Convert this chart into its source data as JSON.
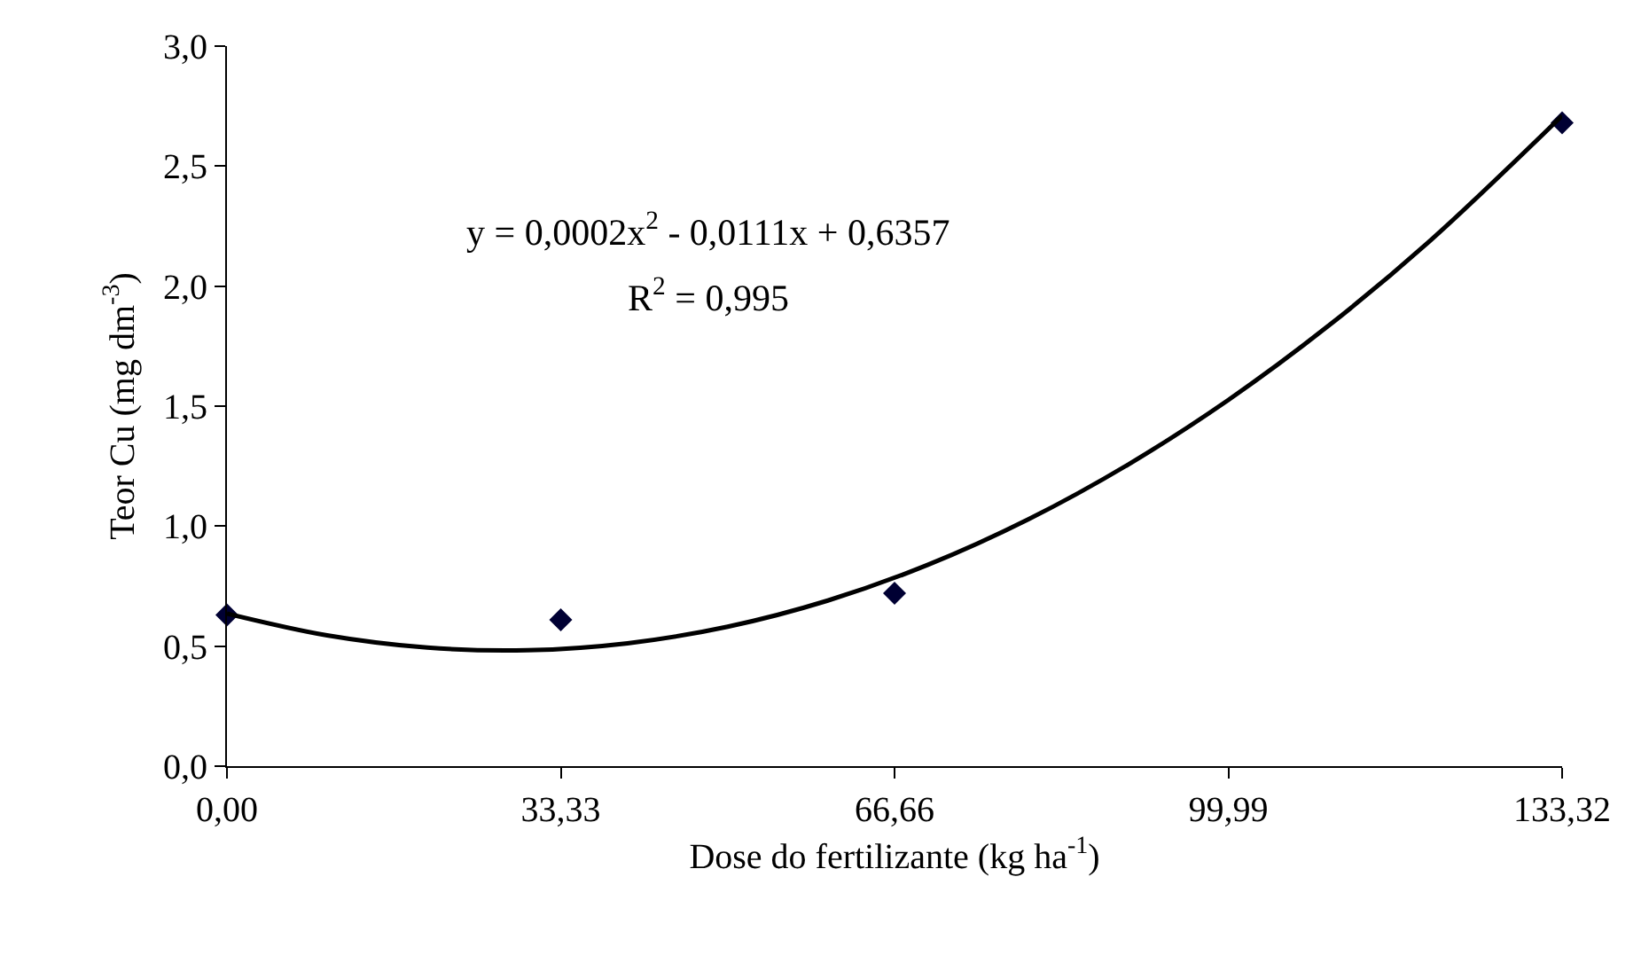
{
  "chart_data": {
    "type": "scatter",
    "xlabel": "Dose do fertilizante (kg ha$^{-1}$)",
    "ylabel": "Teor Cu (mg dm$^{-3}$)",
    "series": [
      {
        "color": "#000033",
        "x": [
          0,
          33.33,
          66.66,
          133.32
        ],
        "values": [
          0.63,
          0.61,
          0.72,
          2.68
        ]
      },
      {
        "type": "line",
        "color": "#000000",
        "marker": "none",
        "x": [
          0,
          10,
          20,
          30,
          40,
          50,
          60,
          70,
          80,
          90,
          100,
          110,
          120,
          133.32
        ],
        "values": [
          0.636,
          0.545,
          0.494,
          0.483,
          0.512,
          0.581,
          0.69,
          0.839,
          1.028,
          1.257,
          1.526,
          1.835,
          2.184,
          2.71
        ]
      }
    ],
    "xlim": [
      0,
      133.32
    ],
    "ylim": [
      0,
      3
    ],
    "xticks": [
      {
        "value": 0,
        "label": "0,00"
      },
      {
        "value": 33.33,
        "label": "33,33"
      },
      {
        "value": 66.66,
        "label": "66,66"
      },
      {
        "value": 99.99,
        "label": "99,99"
      },
      {
        "value": 133.32,
        "label": "133,32"
      }
    ],
    "yticks": [
      {
        "value": 0,
        "label": "0,0"
      },
      {
        "value": 0.5,
        "label": "0,5"
      },
      {
        "value": 1,
        "label": "1,0"
      },
      {
        "value": 1.5,
        "label": "1,5"
      },
      {
        "value": 2,
        "label": "2,0"
      },
      {
        "value": 2.5,
        "label": "2,5"
      },
      {
        "value": 3,
        "label": "3,0"
      }
    ],
    "annotations": [
      "y = 0,0002x$^{2}$ - 0,0111x + 0,6357",
      "R$^{2}$ = 0,995"
    ],
    "marker": "diamond"
  }
}
